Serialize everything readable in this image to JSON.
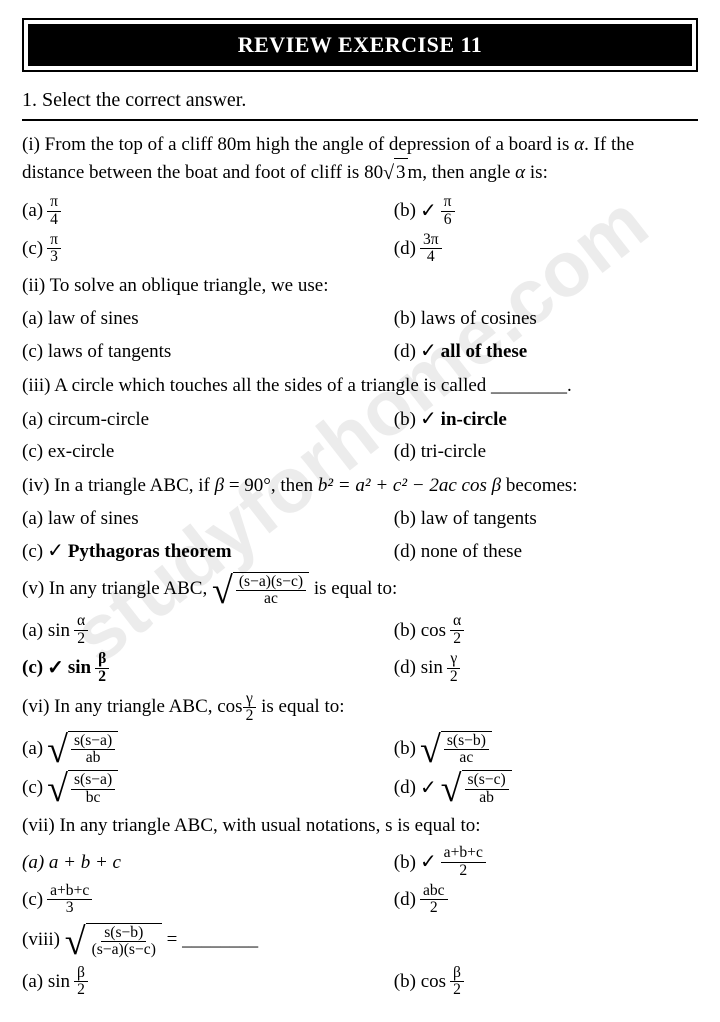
{
  "header": "REVIEW EXERCISE 11",
  "instruction": "1. Select the correct answer.",
  "watermark": "studyforhome.com",
  "check": "✓",
  "q": {
    "i": {
      "text1": "(i) From the top of a cliff 80m high the angle of depression of a board is ",
      "text2": ". If the distance between the boat and foot of cliff is 80",
      "text3": "m, then angle ",
      "text4": " is:",
      "a_lbl": "(a)",
      "a_num": "π",
      "a_den": "4",
      "b_lbl": "(b)",
      "b_num": "π",
      "b_den": "6",
      "c_lbl": "(c)",
      "c_num": "π",
      "c_den": "3",
      "d_lbl": "(d)",
      "d_num": "3π",
      "d_den": "4",
      "alpha": "α",
      "sqrt3": "3"
    },
    "ii": {
      "text": "(ii) To solve an oblique triangle, we use:",
      "a": "(a) law of sines",
      "b": "(b) laws of cosines",
      "c": "(c) laws of tangents",
      "d_lbl": "(d)",
      "d": "all of these"
    },
    "iii": {
      "text": "(iii) A circle which touches all the sides of a triangle is called ________.",
      "a": "(a) circum-circle",
      "b_lbl": "(b)",
      "b": "in-circle",
      "c": "(c) ex-circle",
      "d": "(d) tri-circle"
    },
    "iv": {
      "text1": "(iv) In a triangle ABC, if ",
      "text2": " = 90°, then ",
      "text3": " becomes:",
      "beta": "β",
      "eq": "b² = a² + c² − 2ac cos β",
      "a": "(a) law of sines",
      "b": "(b) law of tangents",
      "c_lbl": "(c)",
      "c": "Pythagoras theorem",
      "d": "(d) none of these"
    },
    "v": {
      "text1": "(v) In any triangle ABC, ",
      "text2": " is equal to:",
      "sq_num": "(s−a)(s−c)",
      "sq_den": "ac",
      "a_lbl": "(a) sin",
      "a_num": "α",
      "a_den": "2",
      "b_lbl": "(b) cos",
      "b_num": "α",
      "b_den": "2",
      "c_lbl": "(c)",
      "c_txt": "sin",
      "c_num": "β",
      "c_den": "2",
      "d_lbl": "(d) sin",
      "d_num": "γ",
      "d_den": "2"
    },
    "vi": {
      "text1": "(vi) In any triangle ABC, cos",
      "text2": " is equal to:",
      "g_num": "γ",
      "g_den": "2",
      "a_lbl": "(a)",
      "a_num": "s(s−a)",
      "a_den": "ab",
      "b_lbl": "(b)",
      "b_num": "s(s−b)",
      "b_den": "ac",
      "c_lbl": "(c)",
      "c_num": "s(s−a)",
      "c_den": "bc",
      "d_lbl": "(d)",
      "d_num": "s(s−c)",
      "d_den": "ab"
    },
    "vii": {
      "text": "(vii) In any triangle ABC, with usual notations, s is equal to:",
      "a": "(a) a + b + c",
      "b_lbl": "(b)",
      "b_num": "a+b+c",
      "b_den": "2",
      "c_lbl": "(c)",
      "c_num": "a+b+c",
      "c_den": "3",
      "d_lbl": "(d)",
      "d_num": "abc",
      "d_den": "2"
    },
    "viii": {
      "lbl": "(viii)",
      "sq_num": "s(s−b)",
      "sq_den": "(s−a)(s−c)",
      "eq": "= ________",
      "a_lbl": "(a) sin",
      "a_num": "β",
      "a_den": "2",
      "b_lbl": "(b) cos",
      "b_num": "β",
      "b_den": "2"
    }
  }
}
